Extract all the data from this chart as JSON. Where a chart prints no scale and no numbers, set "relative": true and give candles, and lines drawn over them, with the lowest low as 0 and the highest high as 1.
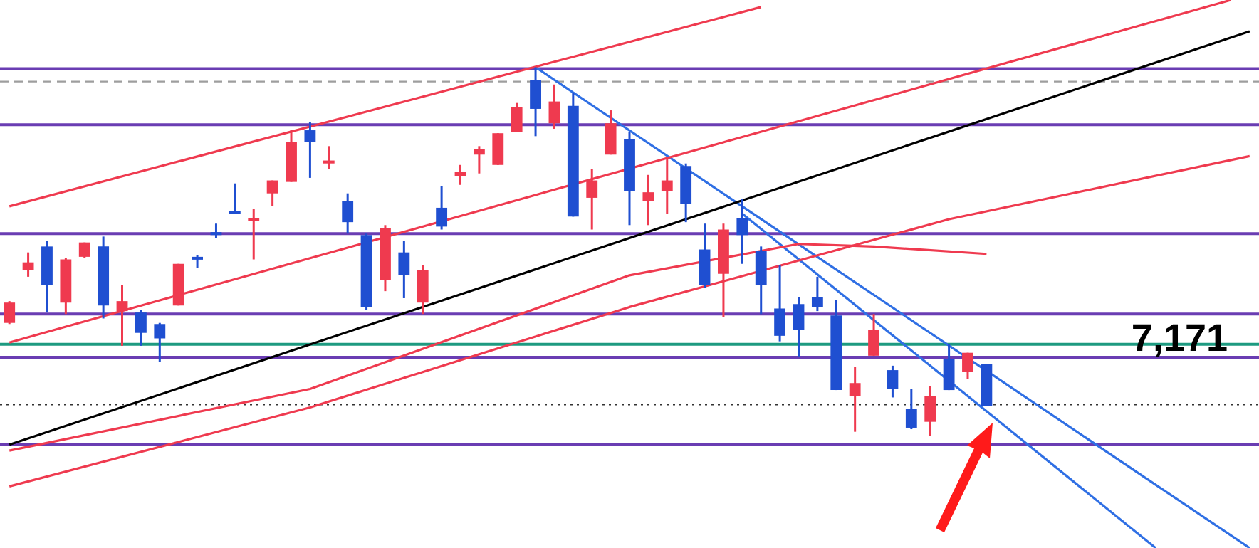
{
  "chart_data": {
    "type": "candlestick",
    "relative": true,
    "legend": false,
    "marker": "none",
    "annotations": [
      "7,171"
    ],
    "categories": [
      null,
      null,
      null,
      null,
      null,
      null,
      null,
      null,
      null,
      null,
      null,
      null,
      null,
      null,
      null,
      null,
      null,
      null,
      null,
      null,
      null,
      null,
      null,
      null,
      null,
      null,
      null,
      null,
      null,
      null,
      null,
      null,
      null,
      null,
      null,
      null,
      null,
      null,
      null,
      null,
      null,
      null,
      null,
      null,
      null,
      null,
      null,
      null,
      null,
      null,
      null,
      null,
      null,
      null,
      null,
      null,
      null,
      null,
      null,
      null,
      null,
      null,
      null,
      null,
      null,
      null,
      null
    ],
    "ohlc": [
      [
        0.307,
        0.366,
        0.304,
        0.362
      ],
      [
        0.451,
        0.498,
        0.432,
        0.471
      ],
      [
        0.514,
        0.529,
        0.335,
        0.409
      ],
      [
        0.362,
        0.482,
        0.331,
        0.479
      ],
      [
        0.486,
        0.525,
        0.482,
        0.525
      ],
      [
        0.514,
        0.541,
        0.319,
        0.354
      ],
      [
        0.339,
        0.409,
        0.245,
        0.366
      ],
      [
        0.335,
        0.342,
        0.245,
        0.28
      ],
      [
        0.304,
        0.307,
        0.202,
        0.265
      ],
      [
        0.354,
        0.467,
        0.354,
        0.467
      ],
      [
        0.486,
        0.49,
        0.455,
        0.479
      ],
      [
        0.553,
        0.576,
        0.537,
        0.545
      ],
      [
        0.611,
        0.685,
        0.603,
        0.603
      ],
      [
        0.588,
        0.615,
        0.479,
        0.591
      ],
      [
        0.658,
        0.693,
        0.623,
        0.693
      ],
      [
        0.689,
        0.829,
        0.689,
        0.798
      ],
      [
        0.829,
        0.852,
        0.7,
        0.798
      ],
      [
        0.739,
        0.786,
        0.724,
        0.747
      ],
      [
        0.638,
        0.658,
        0.549,
        0.58
      ],
      [
        0.545,
        0.549,
        0.342,
        0.35
      ],
      [
        0.424,
        0.572,
        0.393,
        0.564
      ],
      [
        0.498,
        0.529,
        0.374,
        0.436
      ],
      [
        0.362,
        0.463,
        0.331,
        0.451
      ],
      [
        0.619,
        0.677,
        0.56,
        0.568
      ],
      [
        0.704,
        0.735,
        0.681,
        0.716
      ],
      [
        0.763,
        0.786,
        0.712,
        0.778
      ],
      [
        0.735,
        0.821,
        0.735,
        0.821
      ],
      [
        0.825,
        0.903,
        0.825,
        0.891
      ],
      [
        0.965,
        1,
        0.813,
        0.887
      ],
      [
        0.848,
        0.953,
        0.833,
        0.907
      ],
      [
        0.895,
        0.93,
        0.595,
        0.595
      ],
      [
        0.646,
        0.724,
        0.56,
        0.693
      ],
      [
        0.763,
        0.883,
        0.763,
        0.848
      ],
      [
        0.805,
        0.825,
        0.572,
        0.665
      ],
      [
        0.638,
        0.708,
        0.572,
        0.661
      ],
      [
        0.665,
        0.755,
        0.603,
        0.693
      ],
      [
        0.732,
        0.739,
        0.58,
        0.63
      ],
      [
        0.506,
        0.576,
        0.401,
        0.409
      ],
      [
        0.44,
        0.576,
        0.323,
        0.56
      ],
      [
        0.591,
        0.642,
        0.467,
        0.545
      ],
      [
        0.502,
        0.514,
        0.331,
        0.409
      ],
      [
        0.346,
        0.463,
        0.257,
        0.272
      ],
      [
        0.358,
        0.377,
        0.214,
        0.288
      ],
      [
        0.377,
        0.432,
        0.339,
        0.35
      ],
      [
        0.327,
        0.37,
        0.125,
        0.125
      ],
      [
        0.109,
        0.187,
        0.012,
        0.144
      ],
      [
        0.218,
        0.331,
        0.218,
        0.288
      ],
      [
        0.179,
        0.191,
        0.105,
        0.128
      ],
      [
        0.074,
        0.128,
        0.019,
        0.023
      ],
      [
        0.039,
        0.136,
        0,
        0.109
      ],
      [
        0.21,
        0.249,
        0.125,
        0.125
      ],
      [
        0.175,
        0.226,
        0.156,
        0.226
      ],
      [
        0.195,
        0.195,
        0.082,
        0.082
      ],
      null,
      null,
      null,
      null,
      null,
      null,
      null,
      null,
      null,
      null,
      null,
      null,
      null,
      null
    ],
    "colors": [
      "#ef3a4f",
      "#ef3a4f",
      "#1f4fd1",
      "#ef3a4f",
      "#ef3a4f",
      "#1f4fd1",
      "#ef3a4f",
      "#1f4fd1",
      "#1f4fd1",
      "#ef3a4f",
      "#1f4fd1",
      "#1f4fd1",
      "#1f4fd1",
      "#ef3a4f",
      "#ef3a4f",
      "#ef3a4f",
      "#1f4fd1",
      "#ef3a4f",
      "#1f4fd1",
      "#1f4fd1",
      "#ef3a4f",
      "#1f4fd1",
      "#ef3a4f",
      "#1f4fd1",
      "#ef3a4f",
      "#ef3a4f",
      "#ef3a4f",
      "#ef3a4f",
      "#1f4fd1",
      "#ef3a4f",
      "#1f4fd1",
      "#ef3a4f",
      "#ef3a4f",
      "#1f4fd1",
      "#ef3a4f",
      "#ef3a4f",
      "#1f4fd1",
      "#1f4fd1",
      "#ef3a4f",
      "#1f4fd1",
      "#1f4fd1",
      "#1f4fd1",
      "#1f4fd1",
      "#1f4fd1",
      "#1f4fd1",
      "#ef3a4f",
      "#ef3a4f",
      "#1f4fd1",
      "#1f4fd1",
      "#ef3a4f",
      "#1f4fd1",
      "#ef3a4f",
      "#1f4fd1",
      null,
      null,
      null,
      null,
      null,
      null,
      null,
      null,
      null,
      null,
      null,
      null,
      null,
      null
    ],
    "series": [
      {
        "type": "line",
        "color": "#ef3a4f",
        "values": [
          0.623,
          null,
          null,
          null,
          null,
          null,
          null,
          null,
          null,
          null,
          null,
          null,
          null,
          null,
          null,
          null,
          null,
          null,
          null,
          null,
          null,
          null,
          null,
          null,
          null,
          null,
          null,
          null,
          null,
          null,
          null,
          null,
          null,
          null,
          null,
          null,
          null,
          null,
          null,
          null,
          1.163,
          null,
          null,
          null,
          null,
          null,
          null,
          null,
          null,
          null,
          null,
          null,
          null,
          null,
          null,
          null,
          null,
          null,
          null,
          null,
          null,
          null,
          null,
          null,
          null,
          null,
          null
        ]
      },
      {
        "type": "line",
        "color": "#ef3a4f",
        "values": [
          0.254,
          null,
          null,
          null,
          null,
          null,
          null,
          null,
          null,
          null,
          null,
          null,
          null,
          null,
          null,
          null,
          null,
          null,
          null,
          null,
          null,
          null,
          null,
          null,
          null,
          null,
          null,
          null,
          null,
          null,
          null,
          null,
          null,
          null,
          null,
          null,
          null,
          null,
          null,
          null,
          null,
          null,
          null,
          null,
          null,
          null,
          null,
          null,
          null,
          null,
          null,
          null,
          null,
          null,
          null,
          null,
          null,
          null,
          null,
          null,
          null,
          null,
          null,
          null,
          null,
          1.182,
          null
        ]
      },
      {
        "type": "line",
        "color": "#ef3a4f",
        "values": [
          -0.136,
          null,
          null,
          null,
          null,
          null,
          null,
          null,
          null,
          null,
          null,
          null,
          null,
          null,
          null,
          null,
          0.078,
          null,
          null,
          null,
          null,
          null,
          null,
          null,
          null,
          null,
          null,
          null,
          null,
          null,
          null,
          null,
          null,
          0.35,
          null,
          null,
          null,
          null,
          null,
          null,
          null,
          null,
          null,
          null,
          null,
          null,
          null,
          null,
          null,
          null,
          0.588,
          null,
          null,
          null,
          null,
          null,
          null,
          null,
          null,
          null,
          null,
          null,
          null,
          null,
          null,
          null,
          0.759
        ]
      },
      {
        "type": "line",
        "color": "#ef3a4f",
        "values": [
          -0.039,
          null,
          null,
          null,
          null,
          null,
          null,
          null,
          null,
          null,
          null,
          null,
          null,
          null,
          null,
          null,
          0.128,
          null,
          null,
          null,
          null,
          null,
          null,
          null,
          null,
          null,
          null,
          null,
          null,
          null,
          null,
          null,
          null,
          0.436,
          null,
          null,
          null,
          null,
          null,
          null,
          null,
          null,
          0.521,
          null,
          null,
          null,
          0.514,
          null,
          null,
          null,
          null,
          null,
          0.494,
          null,
          null,
          null,
          null,
          null,
          null,
          null,
          null,
          null,
          null,
          null,
          null,
          null,
          null
        ]
      },
      {
        "type": "line",
        "color": "#000000",
        "values": [
          -0.023,
          null,
          null,
          null,
          null,
          null,
          null,
          null,
          null,
          null,
          null,
          null,
          null,
          null,
          null,
          null,
          null,
          null,
          null,
          null,
          null,
          null,
          null,
          null,
          null,
          null,
          null,
          null,
          null,
          null,
          null,
          null,
          null,
          null,
          null,
          null,
          null,
          null,
          null,
          null,
          null,
          null,
          null,
          null,
          null,
          null,
          null,
          null,
          null,
          null,
          null,
          null,
          null,
          null,
          null,
          null,
          null,
          null,
          null,
          null,
          null,
          null,
          null,
          null,
          null,
          null,
          1.097
        ]
      },
      {
        "type": "line",
        "color": "#2f6fe4",
        "values": [
          null,
          null,
          null,
          null,
          null,
          null,
          null,
          null,
          null,
          null,
          null,
          null,
          null,
          null,
          null,
          null,
          null,
          null,
          null,
          null,
          null,
          null,
          null,
          null,
          null,
          null,
          null,
          null,
          1.0,
          null,
          null,
          null,
          null,
          null,
          null,
          null,
          null,
          null,
          null,
          null,
          null,
          null,
          null,
          null,
          null,
          null,
          null,
          null,
          null,
          null,
          null,
          null,
          null,
          null,
          null,
          null,
          null,
          null,
          null,
          null,
          null,
          null,
          null,
          null,
          null,
          null,
          -0.303
        ]
      },
      {
        "type": "line",
        "color": "#2f6fe4",
        "values": [
          null,
          null,
          null,
          null,
          null,
          null,
          null,
          null,
          null,
          null,
          null,
          null,
          null,
          null,
          null,
          null,
          null,
          null,
          null,
          null,
          null,
          null,
          null,
          null,
          null,
          null,
          null,
          null,
          null,
          null,
          null,
          null,
          null,
          null,
          null,
          null,
          null,
          null,
          null,
          0.603,
          null,
          null,
          null,
          null,
          null,
          null,
          null,
          null,
          null,
          null,
          null,
          null,
          null,
          null,
          null,
          null,
          null,
          null,
          null,
          null,
          null,
          -0.303,
          null,
          null,
          null,
          null,
          null
        ]
      }
    ],
    "ref_lines": [
      {
        "axis": "y",
        "value": 0.996,
        "color": "#6a3db3"
      },
      {
        "axis": "y",
        "value": 0.961,
        "color": "#9e9e9e",
        "line_style": "dashed"
      },
      {
        "axis": "y",
        "value": 0.844,
        "color": "#6a3db3"
      },
      {
        "axis": "y",
        "value": 0.549,
        "color": "#6a3db3"
      },
      {
        "axis": "y",
        "value": 0.331,
        "color": "#6a3db3"
      },
      {
        "axis": "y",
        "value": 0.249,
        "color": "#1d9a80"
      },
      {
        "axis": "y",
        "value": 0.214,
        "color": "#6a3db3"
      },
      {
        "axis": "y",
        "value": 0.086,
        "color": "#333333",
        "line_style": "dotted"
      },
      {
        "axis": "y",
        "value": -0.023,
        "color": "#6a3db3"
      }
    ]
  }
}
